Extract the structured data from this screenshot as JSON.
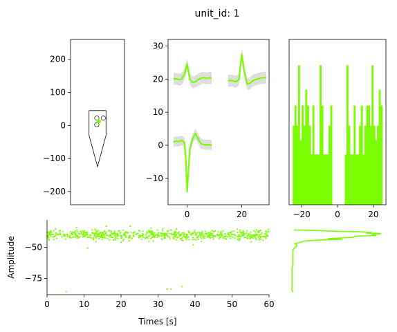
{
  "figure": {
    "title": "unit_id: 1",
    "series_color": "#7cfc00"
  },
  "chart_data": [
    {
      "type": "probe_map",
      "xlim": [
        -70,
        70
      ],
      "ylim": [
        -240,
        260
      ],
      "yticks": [
        -200,
        -100,
        0,
        100,
        200
      ],
      "probe_contour": [
        [
          -22,
          45
        ],
        [
          22,
          45
        ],
        [
          22,
          -30
        ],
        [
          0,
          -125
        ],
        [
          -22,
          -30
        ],
        [
          -22,
          45
        ]
      ],
      "channels": [
        [
          -2,
          22
        ],
        [
          15,
          22
        ],
        [
          -2,
          2
        ]
      ],
      "unit_location": [
        3,
        12
      ]
    },
    {
      "type": "line",
      "xlim": [
        -7,
        30
      ],
      "ylim": [
        -18,
        32
      ],
      "xticks": [
        0,
        20
      ],
      "yticks": [
        -10,
        0,
        10,
        20,
        30
      ],
      "series": [
        {
          "x": [
            -5,
            -4,
            -3,
            -2,
            -1,
            0,
            1,
            2,
            3,
            4,
            5,
            6,
            7,
            8,
            9
          ],
          "y": [
            20,
            20.1,
            19.8,
            20,
            21.5,
            24.5,
            20,
            19,
            19.2,
            19.8,
            20.2,
            20.5,
            20.2,
            20.4,
            20.3
          ]
        },
        {
          "x": [
            15,
            16,
            17,
            18,
            19,
            20,
            21,
            22,
            23,
            24,
            25,
            26,
            27,
            28,
            29
          ],
          "y": [
            19.5,
            19.6,
            19.4,
            19.2,
            20,
            27.5,
            22,
            18.5,
            18.7,
            19.5,
            19.8,
            20.1,
            20.3,
            20.4,
            20.5
          ]
        },
        {
          "x": [
            -5,
            -4,
            -3,
            -2,
            -1,
            -0.5,
            0,
            0.5,
            1,
            2,
            3,
            4,
            5,
            6,
            7,
            8,
            9
          ],
          "y": [
            1,
            1.2,
            1.1,
            1.5,
            0.8,
            -4,
            -14,
            -7,
            -1,
            2,
            3.5,
            2,
            0.5,
            0.2,
            0.1,
            0.2,
            0
          ]
        }
      ],
      "band_halfwidth": [
        1.8,
        1.8,
        1.5
      ]
    },
    {
      "type": "bar",
      "xlim": [
        -27,
        27
      ],
      "ylim": [
        0,
        1.15
      ],
      "xticks": [
        -20,
        0,
        20
      ],
      "bins": [
        [
          -25,
          -24,
          0.55
        ],
        [
          -24,
          -23,
          0.69
        ],
        [
          -23,
          -22,
          0.55
        ],
        [
          -22,
          -21,
          0.97
        ],
        [
          -21,
          -20,
          0.45
        ],
        [
          -20,
          -19,
          0.69
        ],
        [
          -19,
          -18,
          0.55
        ],
        [
          -18,
          -17,
          0.8
        ],
        [
          -17,
          -16,
          0.69
        ],
        [
          -16,
          -15,
          0.55
        ],
        [
          -15,
          -14,
          0.35
        ],
        [
          -14,
          -13,
          0.69
        ],
        [
          -13,
          -12,
          0.35
        ],
        [
          -12,
          -11,
          0.35
        ],
        [
          -11,
          -10,
          0.35
        ],
        [
          -10,
          -9,
          0.97
        ],
        [
          -9,
          -8,
          0.69
        ],
        [
          -8,
          -7,
          0.35
        ],
        [
          -7,
          -6,
          0.35
        ],
        [
          -6,
          -5,
          0.35
        ],
        [
          -5,
          -4,
          0.55
        ],
        [
          -4,
          -3,
          0.69
        ],
        [
          4,
          5,
          0.35
        ],
        [
          5,
          6,
          0.97
        ],
        [
          6,
          7,
          0.55
        ],
        [
          7,
          8,
          0.35
        ],
        [
          8,
          9,
          0.35
        ],
        [
          9,
          10,
          0.69
        ],
        [
          10,
          11,
          0.35
        ],
        [
          11,
          12,
          0.35
        ],
        [
          12,
          13,
          0.55
        ],
        [
          13,
          14,
          0.69
        ],
        [
          14,
          15,
          0.35
        ],
        [
          15,
          16,
          0.55
        ],
        [
          16,
          17,
          0.69
        ],
        [
          17,
          18,
          0.69
        ],
        [
          18,
          19,
          0.55
        ],
        [
          19,
          20,
          0.97
        ],
        [
          20,
          21,
          0.55
        ],
        [
          21,
          22,
          0.45
        ],
        [
          22,
          23,
          0.55
        ],
        [
          23,
          24,
          0.8
        ],
        [
          24,
          25,
          0.69
        ]
      ]
    },
    {
      "type": "scatter",
      "xlabel": "Times [s]",
      "ylabel": "Amplitude",
      "xlim": [
        0,
        60
      ],
      "ylim": [
        -88,
        -28
      ],
      "xticks": [
        0,
        10,
        20,
        30,
        40,
        50,
        60
      ],
      "yticks": [
        -75,
        -50
      ],
      "cluster_mean": -40,
      "cluster_spread": 3,
      "cluster_count": 700,
      "outliers": [
        [
          5.2,
          -85.5
        ],
        [
          32.5,
          -83.5
        ],
        [
          33.5,
          -83.5
        ],
        [
          36.5,
          -81.5
        ],
        [
          11,
          -50.5
        ],
        [
          20,
          -46
        ],
        [
          39.5,
          -48
        ],
        [
          16,
          -33
        ],
        [
          8,
          -34
        ],
        [
          22.5,
          -33
        ]
      ]
    },
    {
      "type": "line",
      "xlim": [
        0,
        1
      ],
      "ylim": [
        -88,
        -28
      ],
      "profile": [
        [
          -86,
          0.04
        ],
        [
          -84,
          0.03
        ],
        [
          -82,
          0.03
        ],
        [
          -80,
          0.03
        ],
        [
          -78,
          0.03
        ],
        [
          -76,
          0.03
        ],
        [
          -74,
          0.03
        ],
        [
          -72,
          0.03
        ],
        [
          -70,
          0.03
        ],
        [
          -68,
          0.03
        ],
        [
          -66,
          0.03
        ],
        [
          -64,
          0.04
        ],
        [
          -62,
          0.04
        ],
        [
          -60,
          0.04
        ],
        [
          -58,
          0.04
        ],
        [
          -56,
          0.04
        ],
        [
          -54,
          0.04
        ],
        [
          -52,
          0.04
        ],
        [
          -51,
          0.05
        ],
        [
          -50,
          0.06
        ],
        [
          -49,
          0.08
        ],
        [
          -48,
          0.08
        ],
        [
          -47,
          0.06
        ],
        [
          -46,
          0.12
        ],
        [
          -45,
          0.15
        ],
        [
          -44,
          0.35
        ],
        [
          -43.5,
          0.55
        ],
        [
          -43,
          0.4
        ],
        [
          -42,
          0.65
        ],
        [
          -41,
          0.7
        ],
        [
          -40.5,
          0.9
        ],
        [
          -40,
          0.85
        ],
        [
          -39,
          0.95
        ],
        [
          -38.5,
          0.8
        ],
        [
          -38,
          0.85
        ],
        [
          -37.5,
          0.7
        ],
        [
          -37,
          0.45
        ],
        [
          -36.5,
          0.3
        ],
        [
          -36,
          0.05
        ]
      ]
    }
  ]
}
